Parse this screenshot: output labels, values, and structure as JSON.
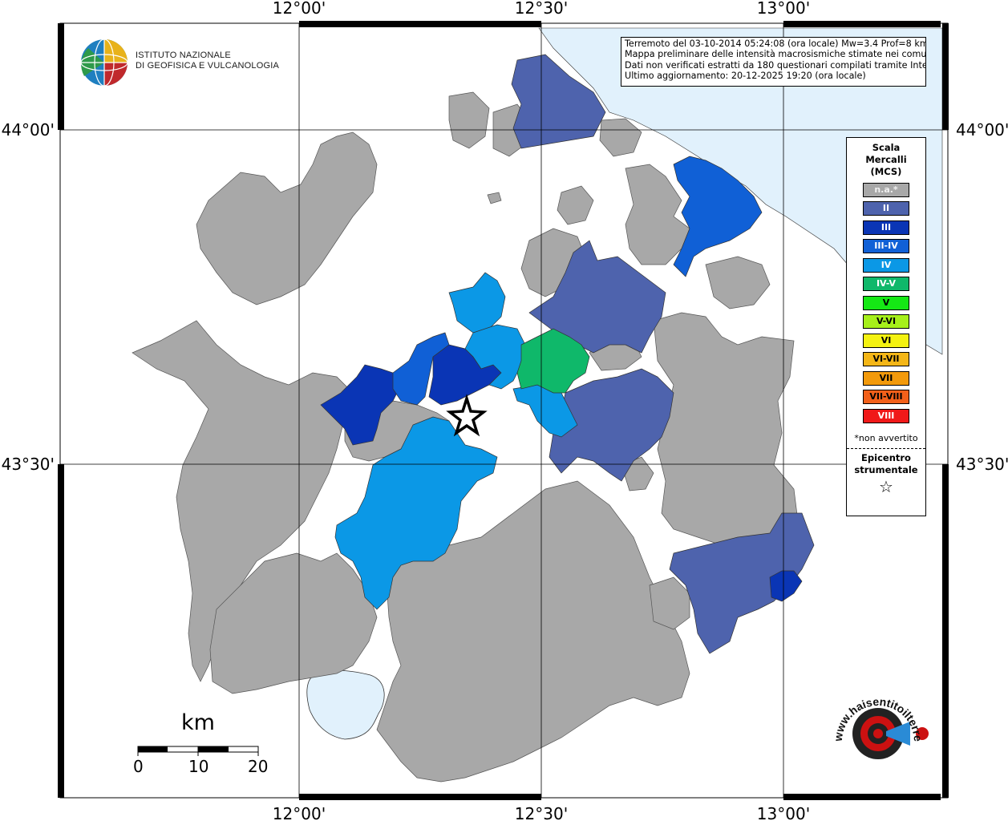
{
  "header": {
    "org_line1": "ISTITUTO NAZIONALE",
    "org_line2": "DI GEOFISICA E VULCANOLOGIA"
  },
  "info": {
    "line1": "Terremoto del 03-10-2014 05:24:08 (ora locale) Mw=3.4 Prof=8 km",
    "line2": "Mappa preliminare delle intensità macrosismiche stimate nei comuni",
    "line3": "Dati non verificati estratti da 180 questionari compilati tramite Internet.",
    "line4": "Ultimo aggiornamento: 20-12-2025 19:20 (ora locale)"
  },
  "axes": {
    "lon_labels": [
      "12°00'",
      "12°30'",
      "13°00'"
    ],
    "lat_labels": [
      "44°00'",
      "43°30'"
    ]
  },
  "legend": {
    "title": "Scala\nMercalli\n(MCS)",
    "items": [
      {
        "label": "n.a.*",
        "color": "#a8a8a8"
      },
      {
        "label": "II",
        "color": "#4e63ad"
      },
      {
        "label": "III",
        "color": "#0a35b5"
      },
      {
        "label": "III-IV",
        "color": "#1060d6"
      },
      {
        "label": "IV",
        "color": "#0b98e6"
      },
      {
        "label": "IV-V",
        "color": "#0fb86a"
      },
      {
        "label": "V",
        "color": "#15e815"
      },
      {
        "label": "V-VI",
        "color": "#a6f01a"
      },
      {
        "label": "VI",
        "color": "#f4f211"
      },
      {
        "label": "VI-VII",
        "color": "#f4b617"
      },
      {
        "label": "VII",
        "color": "#f39a0b"
      },
      {
        "label": "VII-VIII",
        "color": "#f2601a"
      },
      {
        "label": "VIII",
        "color": "#f01919"
      }
    ],
    "na_note": "*non avvertito",
    "epicenter_label": "Epicentro\nstrumentale",
    "epicenter_symbol": "☆"
  },
  "scale_bar": {
    "unit": "km",
    "labels": [
      "0",
      "10",
      "20"
    ]
  },
  "site": {
    "label": "www.haisentitoilterremoto.it"
  },
  "colors": {
    "sea": "#e1f1fc",
    "lake": "#e1f1fc",
    "na": "#a8a8a8",
    "II": "#4e63ad",
    "III": "#0a35b5",
    "III-IV": "#1060d6",
    "IV": "#0b98e6",
    "IV-V": "#0fb86a"
  }
}
